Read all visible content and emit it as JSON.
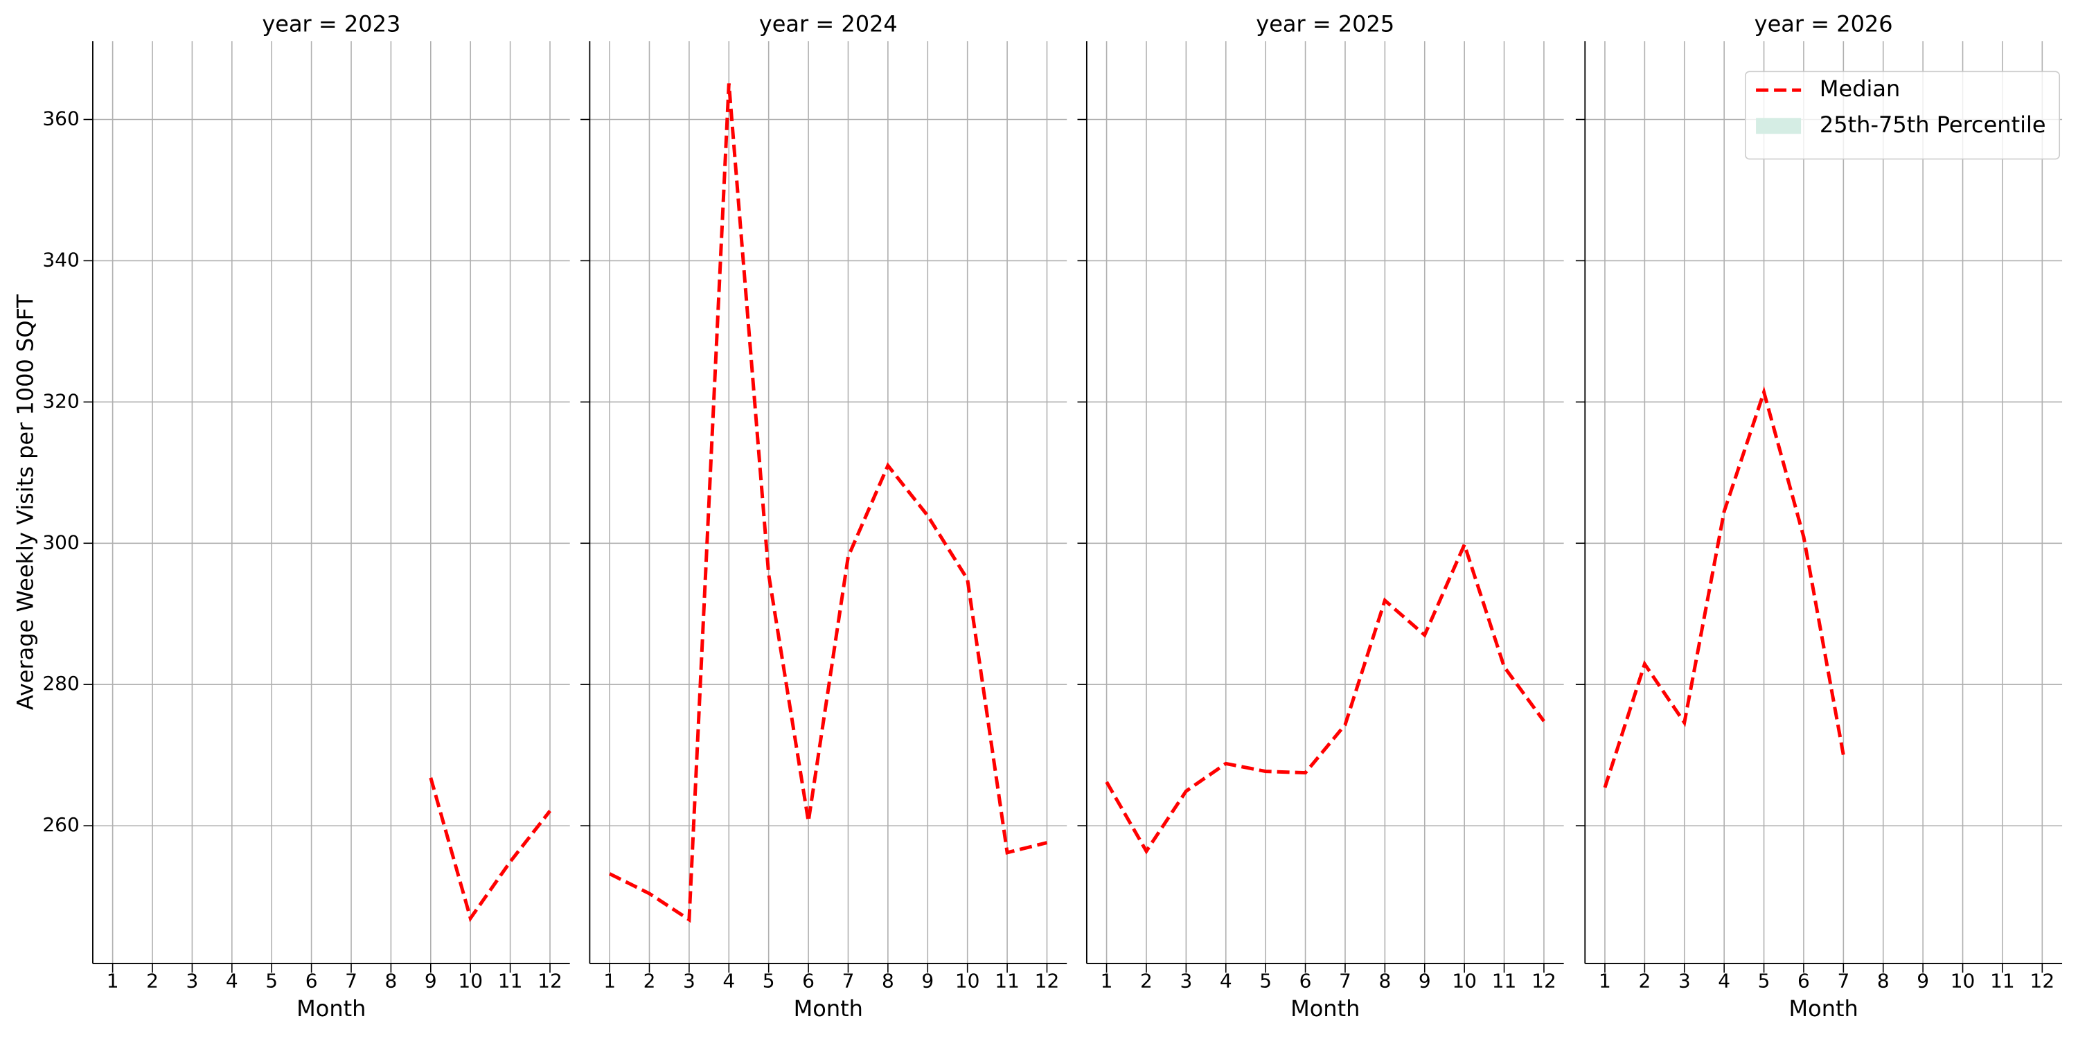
{
  "chart_data": [
    {
      "type": "line",
      "title": "year = 2023",
      "xlabel": "Month",
      "ylabel": "Average Weekly Visits per 1000 SQFT",
      "x": [
        1,
        2,
        3,
        4,
        5,
        6,
        7,
        8,
        9,
        10,
        11,
        12
      ],
      "series": [
        {
          "name": "Median",
          "color": "#ff0000",
          "values": [
            null,
            null,
            null,
            null,
            null,
            null,
            null,
            null,
            266.8,
            246.9,
            254.9,
            262.1
          ]
        }
      ],
      "xlim": [
        0.5,
        12.5
      ],
      "xticks": [
        1,
        2,
        3,
        4,
        5,
        6,
        7,
        8,
        9,
        10,
        11,
        12
      ],
      "ylim": [
        240.5,
        371.1
      ],
      "yticks": [
        260,
        280,
        300,
        320,
        340,
        360
      ],
      "grid": true
    },
    {
      "type": "line",
      "title": "year = 2024",
      "xlabel": "Month",
      "x": [
        1,
        2,
        3,
        4,
        5,
        6,
        7,
        8,
        9,
        10,
        11,
        12
      ],
      "series": [
        {
          "name": "Median",
          "color": "#ff0000",
          "values": [
            253.2,
            250.4,
            246.7,
            365.1,
            295.6,
            260.6,
            298.1,
            311.0,
            303.9,
            294.9,
            256.2,
            257.6
          ]
        }
      ],
      "xlim": [
        0.5,
        12.5
      ],
      "xticks": [
        1,
        2,
        3,
        4,
        5,
        6,
        7,
        8,
        9,
        10,
        11,
        12
      ],
      "ylim": [
        240.5,
        371.1
      ],
      "yticks": [
        260,
        280,
        300,
        320,
        340,
        360
      ],
      "grid": true
    },
    {
      "type": "line",
      "title": "year = 2025",
      "xlabel": "Month",
      "x": [
        1,
        2,
        3,
        4,
        5,
        6,
        7,
        8,
        9,
        10,
        11,
        12
      ],
      "series": [
        {
          "name": "Median",
          "color": "#ff0000",
          "values": [
            266.2,
            256.4,
            264.9,
            268.8,
            267.7,
            267.5,
            274.3,
            291.9,
            287.0,
            299.8,
            282.5,
            274.8
          ]
        }
      ],
      "xlim": [
        0.5,
        12.5
      ],
      "xticks": [
        1,
        2,
        3,
        4,
        5,
        6,
        7,
        8,
        9,
        10,
        11,
        12
      ],
      "ylim": [
        240.5,
        371.1
      ],
      "yticks": [
        260,
        280,
        300,
        320,
        340,
        360
      ],
      "grid": true
    },
    {
      "type": "line",
      "title": "year = 2026",
      "xlabel": "Month",
      "x": [
        1,
        2,
        3,
        4,
        5,
        6,
        7,
        8,
        9,
        10,
        11,
        12
      ],
      "series": [
        {
          "name": "Median",
          "color": "#ff0000",
          "values": [
            265.4,
            282.9,
            274.6,
            304.5,
            321.4,
            300.9,
            270.0,
            null,
            null,
            null,
            null,
            null
          ]
        },
        {
          "name": "25th-75th Percentile",
          "color": "#d5ede4",
          "values": [
            null,
            null,
            null,
            null,
            null,
            null,
            null,
            null,
            null,
            null,
            null,
            null
          ]
        }
      ],
      "xlim": [
        0.5,
        12.5
      ],
      "xticks": [
        1,
        2,
        3,
        4,
        5,
        6,
        7,
        8,
        9,
        10,
        11,
        12
      ],
      "ylim": [
        240.5,
        371.1
      ],
      "yticks": [
        260,
        280,
        300,
        320,
        340,
        360
      ],
      "grid": true,
      "legend": "upper right"
    }
  ]
}
